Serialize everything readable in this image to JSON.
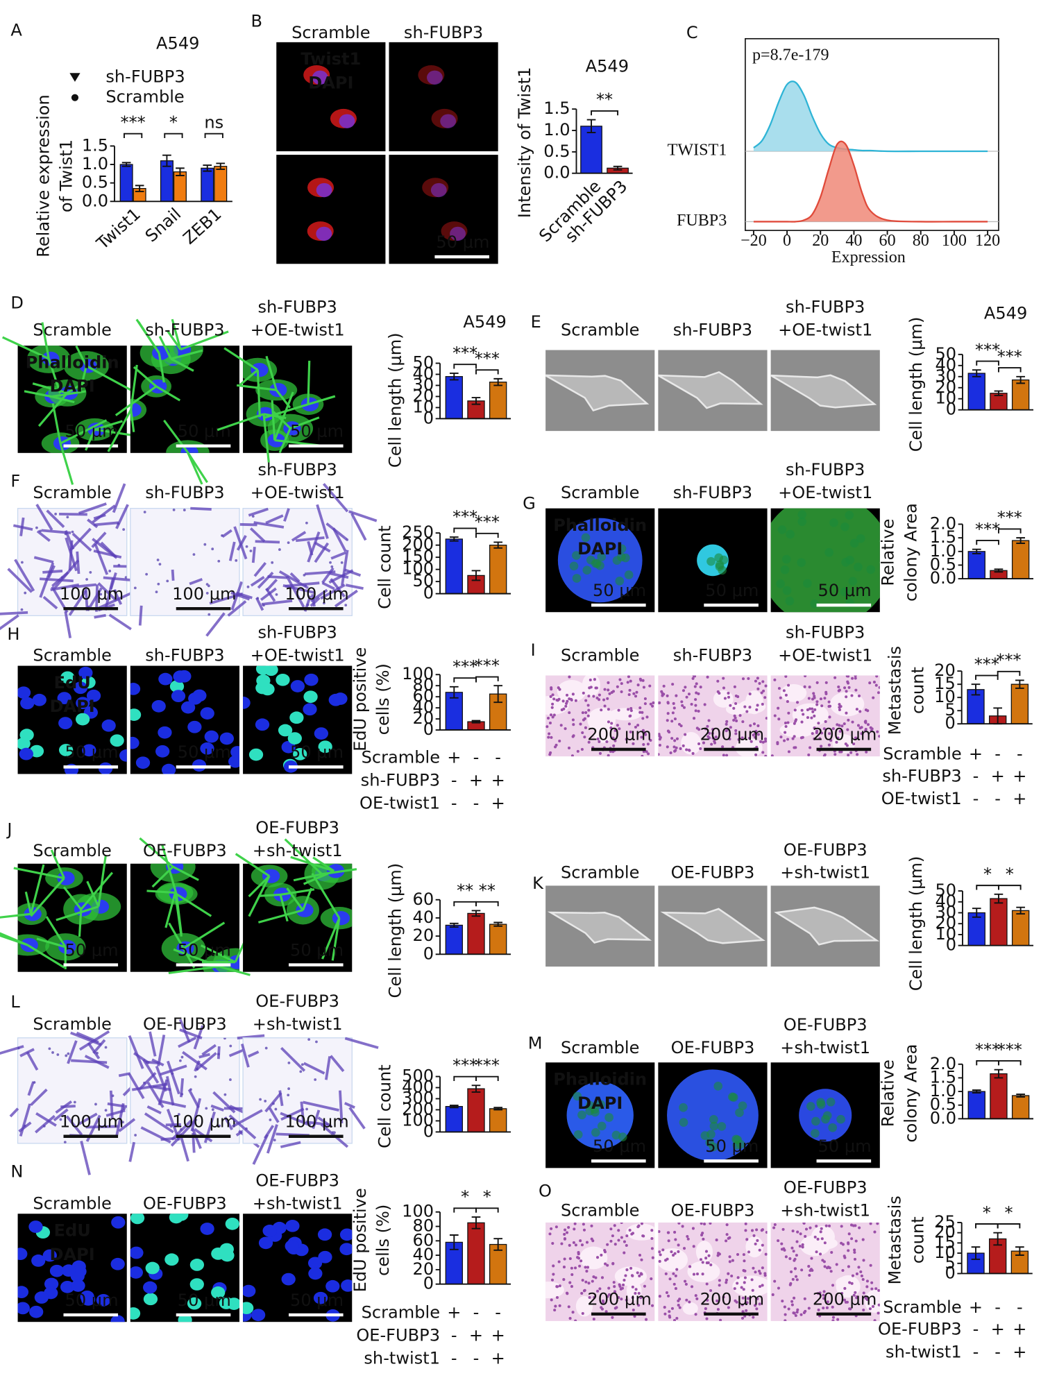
{
  "panels": [
    {
      "label": "A",
      "chart_data": {
        "type": "grouped_bar",
        "title": "A549",
        "y_label": [
          "Relative expression",
          "of Twist1"
        ],
        "categories": [
          "Twist1",
          "Snail",
          "ZEB1"
        ],
        "series": [
          {
            "name": "Scramble",
            "color": "#1a2ee0",
            "marker": "circle",
            "values": [
              1.0,
              1.1,
              0.9
            ],
            "errors": [
              0.05,
              0.15,
              0.08
            ]
          },
          {
            "name": "sh-FUBP3",
            "color": "#f07c10",
            "marker": "triangle",
            "values": [
              0.35,
              0.8,
              0.95
            ],
            "errors": [
              0.08,
              0.1,
              0.08
            ]
          }
        ],
        "ylim": [
          0,
          1.5
        ],
        "yticks": [
          {
            "value": 0,
            "label": "0.0"
          },
          0.5,
          {
            "value": 1,
            "label": "1.0"
          },
          1.5
        ],
        "significance": [
          "***",
          "*",
          "ns"
        ]
      }
    },
    {
      "label": "B",
      "columns": [
        [
          "Scramble"
        ],
        [
          "sh-FUBP3"
        ]
      ],
      "overlays": [
        {
          "text": "Twist1",
          "color": "#ff2a2a"
        },
        {
          "text": "DAPI",
          "color": "#2a5cff"
        }
      ],
      "scale_bar": "50 μm",
      "chart_data": {
        "type": "bar",
        "title": "A549",
        "y_label": [
          "Intensity of Twist1"
        ],
        "categories": [
          "Scramble",
          "sh-FUBP3"
        ],
        "values": [
          1.1,
          0.12
        ],
        "errors": [
          0.15,
          0.04
        ],
        "colors": [
          "#1a2ee0",
          "#b51c1c"
        ],
        "ylim": [
          0,
          1.5
        ],
        "yticks": [
          {
            "value": 0,
            "label": "0.0"
          },
          0.5,
          {
            "value": 1,
            "label": "1.0"
          },
          1.5
        ],
        "significance": [
          "**"
        ]
      }
    },
    {
      "label": "C",
      "chart_data": {
        "type": "ridge",
        "annotation": "p=8.7e-179",
        "x_label": "Expression",
        "x": [
          -20,
          -15,
          -10,
          -5,
          0,
          5,
          10,
          15,
          20,
          25,
          30,
          35,
          40,
          45,
          50,
          60,
          80,
          100,
          120
        ],
        "series": [
          {
            "name": "TWIST1",
            "color": "#2eb4d6",
            "fill": "#9ad8ea",
            "values": [
              0.05,
              0.15,
              0.38,
              0.7,
              0.95,
              0.98,
              0.8,
              0.5,
              0.25,
              0.1,
              0.05,
              0.03,
              0.02,
              0.01,
              0.01,
              0,
              0,
              0,
              0
            ]
          },
          {
            "name": "FUBP3",
            "color": "#e04a3a",
            "fill": "#f08878",
            "values": [
              0,
              0,
              0,
              0,
              0,
              0,
              0.02,
              0.1,
              0.35,
              0.75,
              1.1,
              1.1,
              0.8,
              0.4,
              0.15,
              0.02,
              0,
              0,
              0
            ]
          }
        ],
        "xlim": [
          -25,
          125
        ],
        "xticks": [
          {
            "value": -20,
            "label": "−20"
          },
          0,
          20,
          40,
          60,
          80,
          100,
          120
        ]
      }
    },
    {
      "label": "D",
      "columns": [
        [
          "Scramble"
        ],
        [
          "sh-FUBP3"
        ],
        [
          "sh-FUBP3",
          "+OE-twist1"
        ]
      ],
      "overlays": [
        {
          "text": "Phalloidin",
          "color": "#22cc33"
        },
        {
          "text": "DAPI",
          "color": "#2a5cff"
        }
      ],
      "scale_bar": "50 μm",
      "chart_data": {
        "type": "bar",
        "title": "A549",
        "y_label": [
          "Cell length (μm)"
        ],
        "values": [
          38,
          16,
          33
        ],
        "errors": [
          3,
          3,
          3
        ],
        "colors": [
          "#1a2ee0",
          "#b51c1c",
          "#d2750f"
        ],
        "ylim": [
          0,
          50
        ],
        "yticks": [
          0,
          10,
          20,
          30,
          40,
          50
        ],
        "significance": [
          "***",
          "***"
        ]
      }
    },
    {
      "label": "E",
      "columns": [
        [
          "Scramble"
        ],
        [
          "sh-FUBP3"
        ],
        [
          "sh-FUBP3",
          "+OE-twist1"
        ]
      ],
      "chart_data": {
        "type": "bar",
        "title": "A549",
        "y_label": [
          "Cell length (μm)"
        ],
        "values": [
          33,
          15,
          27
        ],
        "errors": [
          3,
          2,
          3
        ],
        "colors": [
          "#1a2ee0",
          "#b51c1c",
          "#d2750f"
        ],
        "ylim": [
          0,
          50
        ],
        "yticks": [
          0,
          10,
          20,
          30,
          40,
          50
        ],
        "significance": [
          "***",
          "***"
        ]
      }
    },
    {
      "label": "F",
      "columns": [
        [
          "Scramble"
        ],
        [
          "sh-FUBP3"
        ],
        [
          "sh-FUBP3",
          "+OE-twist1"
        ]
      ],
      "scale_bar": "100 μm",
      "chart_data": {
        "type": "bar",
        "y_label": [
          "Cell count"
        ],
        "values": [
          225,
          75,
          200
        ],
        "errors": [
          8,
          20,
          12
        ],
        "colors": [
          "#1a2ee0",
          "#b51c1c",
          "#d2750f"
        ],
        "ylim": [
          0,
          250
        ],
        "yticks": [
          0,
          50,
          100,
          150,
          200,
          250
        ],
        "significance": [
          "***",
          "***"
        ]
      }
    },
    {
      "label": "G",
      "columns": [
        [
          "Scramble"
        ],
        [
          "sh-FUBP3"
        ],
        [
          "sh-FUBP3",
          "+OE-twist1"
        ]
      ],
      "overlays": [
        {
          "text": "Phalloidin",
          "color": "#22cc33"
        },
        {
          "text": "DAPI",
          "color": "#2a5cff"
        }
      ],
      "scale_bar": "50 μm",
      "chart_data": {
        "type": "bar",
        "y_label": [
          "Relative",
          "colony Area"
        ],
        "values": [
          1.0,
          0.3,
          1.4
        ],
        "errors": [
          0.08,
          0.05,
          0.1
        ],
        "colors": [
          "#1a2ee0",
          "#b51c1c",
          "#d2750f"
        ],
        "ylim": [
          0,
          2
        ],
        "yticks": [
          {
            "value": 0,
            "label": "0.0"
          },
          0.5,
          {
            "value": 1,
            "label": "1.0"
          },
          1.5,
          {
            "value": 2,
            "label": "2.0"
          }
        ],
        "significance": [
          "***",
          "***"
        ]
      }
    },
    {
      "label": "H",
      "columns": [
        [
          "Scramble"
        ],
        [
          "sh-FUBP3"
        ],
        [
          "sh-FUBP3",
          "+OE-twist1"
        ]
      ],
      "overlays": [
        {
          "text": "EdU",
          "color": "#22cc33"
        },
        {
          "text": "DAPI",
          "color": "#2a5cff"
        }
      ],
      "scale_bar": "50 μm",
      "chart_data": {
        "type": "bar",
        "y_label": [
          "EdU positive",
          "cells (%)"
        ],
        "values": [
          68,
          15,
          65
        ],
        "errors": [
          10,
          2,
          15
        ],
        "colors": [
          "#1a2ee0",
          "#b51c1c",
          "#d2750f"
        ],
        "ylim": [
          0,
          100
        ],
        "yticks": [
          0,
          20,
          40,
          60,
          80,
          100
        ],
        "significance": [
          "***",
          "***"
        ],
        "conditions": [
          {
            "name": "Scramble",
            "signs": [
              "+",
              "-",
              "-"
            ]
          },
          {
            "name": "sh-FUBP3",
            "signs": [
              "-",
              "+",
              "+"
            ]
          },
          {
            "name": "OE-twist1",
            "signs": [
              "-",
              "-",
              "+"
            ]
          }
        ]
      }
    },
    {
      "label": "I",
      "columns": [
        [
          "Scramble"
        ],
        [
          "sh-FUBP3"
        ],
        [
          "sh-FUBP3",
          "+OE-twist1"
        ]
      ],
      "scale_bar": "200 μm",
      "chart_data": {
        "type": "bar",
        "y_label": [
          "Metastasis",
          "count"
        ],
        "values": [
          13,
          3,
          15
        ],
        "errors": [
          2,
          3,
          1.5
        ],
        "colors": [
          "#1a2ee0",
          "#b51c1c",
          "#d2750f"
        ],
        "ylim": [
          0,
          20
        ],
        "yticks": [
          0,
          5,
          10,
          15,
          20
        ],
        "significance": [
          "***",
          "***"
        ],
        "conditions": [
          {
            "name": "Scramble",
            "signs": [
              "+",
              "-",
              "-"
            ]
          },
          {
            "name": "sh-FUBP3",
            "signs": [
              "-",
              "+",
              "+"
            ]
          },
          {
            "name": "OE-twist1",
            "signs": [
              "-",
              "-",
              "+"
            ]
          }
        ]
      }
    },
    {
      "label": "J",
      "columns": [
        [
          "Scramble"
        ],
        [
          "OE-FUBP3"
        ],
        [
          "OE-FUBP3",
          "+sh-twist1"
        ]
      ],
      "scale_bar": "50 μm",
      "chart_data": {
        "type": "bar",
        "y_label": [
          "Cell length (μm)"
        ],
        "values": [
          32,
          45,
          33
        ],
        "errors": [
          2,
          3,
          2
        ],
        "colors": [
          "#1a2ee0",
          "#b51c1c",
          "#d2750f"
        ],
        "ylim": [
          0,
          60
        ],
        "yticks": [
          0,
          20,
          40,
          60
        ],
        "significance": [
          "**",
          "**"
        ]
      }
    },
    {
      "label": "K",
      "columns": [
        [
          "Scramble"
        ],
        [
          "OE-FUBP3"
        ],
        [
          "OE-FUBP3",
          "+sh-twist1"
        ]
      ],
      "chart_data": {
        "type": "bar",
        "y_label": [
          "Cell length (μm)"
        ],
        "values": [
          30,
          43,
          32
        ],
        "errors": [
          4,
          4,
          3
        ],
        "colors": [
          "#1a2ee0",
          "#b51c1c",
          "#d2750f"
        ],
        "ylim": [
          0,
          50
        ],
        "yticks": [
          0,
          10,
          20,
          30,
          40,
          50
        ],
        "significance": [
          "*",
          "*"
        ]
      }
    },
    {
      "label": "L",
      "columns": [
        [
          "Scramble"
        ],
        [
          "OE-FUBP3"
        ],
        [
          "OE-FUBP3",
          "+sh-twist1"
        ]
      ],
      "scale_bar": "100 μm",
      "chart_data": {
        "type": "bar",
        "y_label": [
          "Cell count"
        ],
        "values": [
          230,
          390,
          210
        ],
        "errors": [
          10,
          30,
          10
        ],
        "colors": [
          "#1a2ee0",
          "#b51c1c",
          "#d2750f"
        ],
        "ylim": [
          0,
          500
        ],
        "yticks": [
          0,
          100,
          200,
          300,
          400,
          500
        ],
        "significance": [
          "***",
          "***"
        ]
      }
    },
    {
      "label": "M",
      "columns": [
        [
          "Scramble"
        ],
        [
          "OE-FUBP3"
        ],
        [
          "OE-FUBP3",
          "+sh-twist1"
        ]
      ],
      "overlays": [
        {
          "text": "Phalloidin",
          "color": "#22cc33"
        },
        {
          "text": "DAPI",
          "color": "#2a5cff"
        }
      ],
      "scale_bar": "50 μm",
      "chart_data": {
        "type": "bar",
        "y_label": [
          "Relative",
          "colony Area"
        ],
        "values": [
          1.0,
          1.65,
          0.85
        ],
        "errors": [
          0.05,
          0.15,
          0.05
        ],
        "colors": [
          "#1a2ee0",
          "#b51c1c",
          "#d2750f"
        ],
        "ylim": [
          0,
          2
        ],
        "yticks": [
          {
            "value": 0,
            "label": "0.0"
          },
          0.5,
          {
            "value": 1,
            "label": "1.0"
          },
          1.5,
          {
            "value": 2,
            "label": "2.0"
          }
        ],
        "significance": [
          "***",
          "***"
        ]
      }
    },
    {
      "label": "N",
      "columns": [
        [
          "Scramble"
        ],
        [
          "OE-FUBP3"
        ],
        [
          "OE-FUBP3",
          "+sh-twist1"
        ]
      ],
      "overlays": [
        {
          "text": "EdU",
          "color": "#22cc33"
        },
        {
          "text": "DAPI",
          "color": "#2a5cff"
        }
      ],
      "scale_bar": "50 μm",
      "chart_data": {
        "type": "bar",
        "y_label": [
          "EdU positive",
          "cells (%)"
        ],
        "values": [
          58,
          85,
          55
        ],
        "errors": [
          10,
          8,
          8
        ],
        "colors": [
          "#1a2ee0",
          "#b51c1c",
          "#d2750f"
        ],
        "ylim": [
          0,
          100
        ],
        "yticks": [
          0,
          20,
          40,
          60,
          80,
          100
        ],
        "significance": [
          "*",
          "*"
        ],
        "conditions": [
          {
            "name": "Scramble",
            "signs": [
              "+",
              "-",
              "-"
            ]
          },
          {
            "name": "OE-FUBP3",
            "signs": [
              "-",
              "+",
              "+"
            ]
          },
          {
            "name": "sh-twist1",
            "signs": [
              "-",
              "-",
              "+"
            ]
          }
        ]
      }
    },
    {
      "label": "O",
      "columns": [
        [
          "Scramble"
        ],
        [
          "OE-FUBP3"
        ],
        [
          "OE-FUBP3",
          "+sh-twist1"
        ]
      ],
      "scale_bar": "200 μm",
      "chart_data": {
        "type": "bar",
        "y_label": [
          "Metastasis",
          "count"
        ],
        "values": [
          10,
          17,
          11
        ],
        "errors": [
          3,
          3,
          2
        ],
        "colors": [
          "#1a2ee0",
          "#b51c1c",
          "#d2750f"
        ],
        "ylim": [
          0,
          25
        ],
        "yticks": [
          0,
          5,
          10,
          15,
          20,
          25
        ],
        "significance": [
          "*",
          "*"
        ],
        "conditions": [
          {
            "name": "Scramble",
            "signs": [
              "+",
              "-",
              "-"
            ]
          },
          {
            "name": "OE-FUBP3",
            "signs": [
              "-",
              "+",
              "+"
            ]
          },
          {
            "name": "sh-twist1",
            "signs": [
              "-",
              "-",
              "+"
            ]
          }
        ]
      }
    }
  ]
}
